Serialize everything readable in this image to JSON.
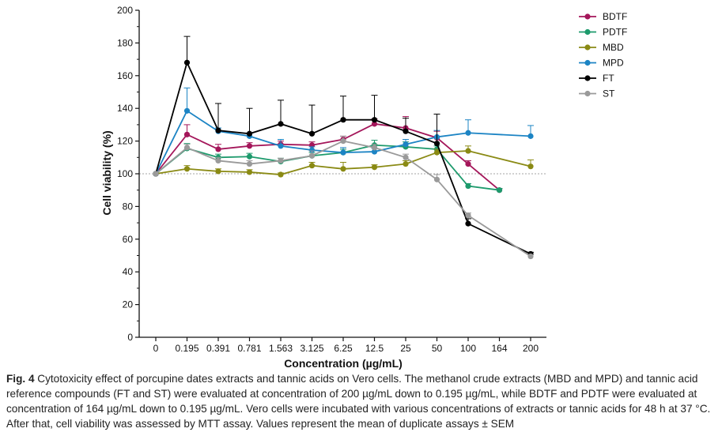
{
  "chart_data": {
    "type": "line",
    "xlabel": "Concentration (µg/mL)",
    "ylabel": "Cell viability (%)",
    "ylim": [
      0,
      200
    ],
    "yticks": [
      0,
      20,
      40,
      60,
      80,
      100,
      120,
      140,
      160,
      180,
      200
    ],
    "categories": [
      "0",
      "0.195",
      "0.391",
      "0.781",
      "1.563",
      "3.125",
      "6.25",
      "12.5",
      "25",
      "50",
      "100",
      "164",
      "200"
    ],
    "reference_line": 100,
    "legend_position": "top-right",
    "series": [
      {
        "name": "BDTF",
        "color": "#A4165A",
        "values": [
          100,
          124,
          115,
          117,
          118,
          117.5,
          121,
          130.5,
          128,
          122,
          106,
          90,
          null
        ],
        "errors": [
          0,
          6,
          3,
          2,
          2,
          2,
          2,
          3,
          7,
          4,
          2,
          1,
          null
        ]
      },
      {
        "name": "PDTF",
        "color": "#1D9A6C",
        "values": [
          100,
          115.5,
          110,
          110.5,
          107.5,
          111,
          113,
          117.5,
          116.5,
          115,
          92.5,
          90,
          null
        ],
        "errors": [
          0,
          3,
          2,
          2,
          2,
          2,
          2,
          3,
          3,
          2,
          1.5,
          1,
          null
        ]
      },
      {
        "name": "MBD",
        "color": "#8A8A14",
        "values": [
          100,
          103,
          101.5,
          101,
          99.5,
          105,
          103,
          104,
          106,
          113,
          114,
          null,
          104.5
        ],
        "errors": [
          0,
          2,
          1.5,
          1.5,
          1,
          2,
          4,
          1.5,
          2,
          2,
          3,
          null,
          4
        ]
      },
      {
        "name": "MPD",
        "color": "#1C84C4",
        "values": [
          100,
          138.5,
          126,
          123,
          117,
          114.5,
          113,
          113.5,
          118,
          122.5,
          125,
          null,
          123
        ],
        "errors": [
          0,
          14,
          2,
          2,
          4,
          2,
          3,
          2,
          3,
          4,
          8,
          null,
          6.5
        ]
      },
      {
        "name": "FT",
        "color": "#000000",
        "values": [
          100,
          168,
          126.5,
          124.5,
          130.5,
          124.5,
          133,
          133,
          126,
          118.5,
          69.5,
          null,
          51
        ],
        "errors": [
          0,
          16,
          16.5,
          15.5,
          14.5,
          17.5,
          14.5,
          15,
          8,
          18,
          3,
          null,
          1
        ]
      },
      {
        "name": "ST",
        "color": "#9A9A9A",
        "values": [
          100,
          116,
          108,
          106,
          108,
          111,
          120,
          116,
          110,
          96.5,
          74.5,
          null,
          49.5
        ],
        "errors": [
          0,
          2,
          2,
          2,
          1.5,
          3,
          3,
          2,
          2,
          3,
          1.5,
          null,
          1
        ]
      }
    ]
  },
  "caption": {
    "label": "Fig. 4",
    "text": "Cytotoxicity effect of porcupine dates extracts and tannic acids on Vero cells. The methanol crude extracts (MBD and MPD) and tannic acid reference compounds (FT and ST) were evaluated at concentration of 200 µg/mL down to 0.195 µg/mL, while BDTF and PDTF were evaluated at concentration of 164 µg/mL down to 0.195 µg/mL. Vero cells were incubated with various concentrations of extracts or tannic acids for 48 h at 37 °C. After that, cell viability was assessed by MTT assay. Values represent the mean of duplicate assays ± SEM"
  }
}
